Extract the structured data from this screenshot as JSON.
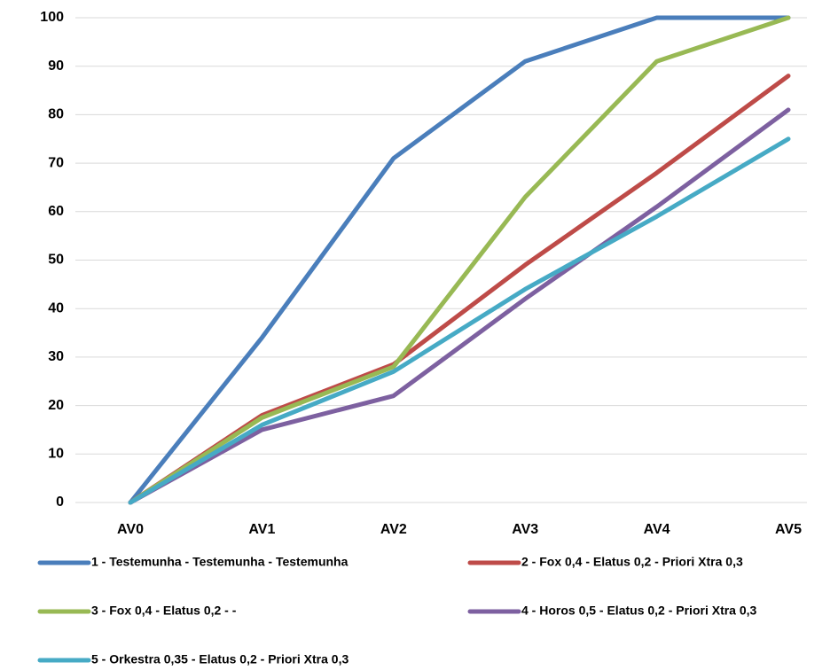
{
  "chart_data": {
    "type": "line",
    "categories": [
      "AV0",
      "AV1",
      "AV2",
      "AV3",
      "AV4",
      "AV5"
    ],
    "series": [
      {
        "name": "1 - Testemunha - Testemunha - Testemunha",
        "color": "#4a7ebb",
        "values": [
          0,
          34,
          71,
          91,
          100,
          100
        ]
      },
      {
        "name": "2 - Fox 0,4 - Elatus 0,2 - Priori Xtra 0,3",
        "color": "#be4b48",
        "values": [
          0,
          18,
          28.5,
          49,
          68,
          88
        ]
      },
      {
        "name": "3 - Fox 0,4 - Elatus 0,2 - -",
        "color": "#98b954",
        "values": [
          0,
          17.5,
          28,
          63,
          91,
          100
        ]
      },
      {
        "name": "4 - Horos 0,5 - Elatus 0,2 - Priori Xtra 0,3",
        "color": "#7d60a0",
        "values": [
          0,
          15,
          22,
          42,
          61,
          81
        ]
      },
      {
        "name": "5 - Orkestra 0,35 - Elatus 0,2 - Priori Xtra 0,3",
        "color": "#46aac5",
        "values": [
          0,
          16,
          27,
          44,
          59,
          75
        ]
      }
    ],
    "ylim": [
      0,
      100
    ],
    "yticks": [
      0,
      10,
      20,
      30,
      40,
      50,
      60,
      70,
      80,
      90,
      100
    ],
    "grid": true
  }
}
